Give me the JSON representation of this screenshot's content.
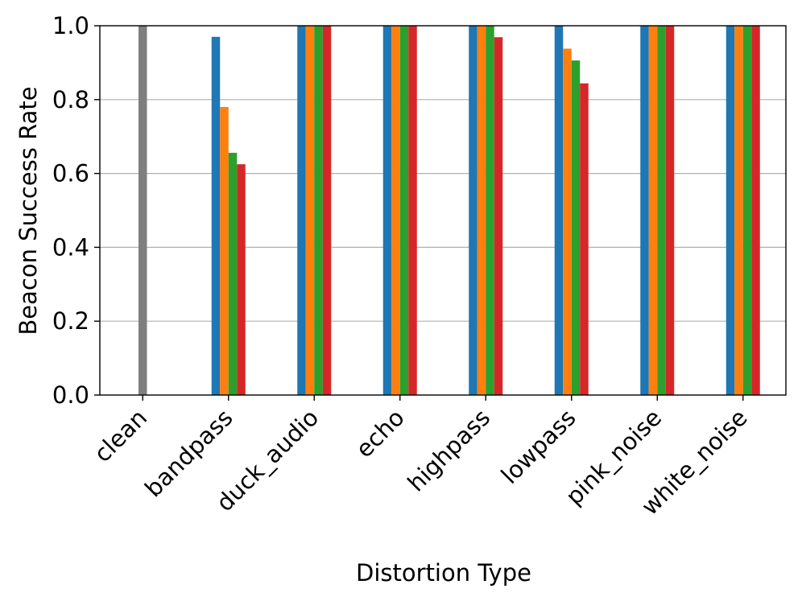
{
  "chart_data": {
    "type": "bar",
    "xlabel": "Distortion Type",
    "ylabel": "Beacon Success Rate",
    "ylim": [
      0,
      1.0
    ],
    "yticks": [
      "0.0",
      "0.2",
      "0.4",
      "0.6",
      "0.8",
      "1.0"
    ],
    "grid": "horizontal",
    "legend": "none",
    "categories": [
      "clean",
      "bandpass",
      "duck_audio",
      "echo",
      "highpass",
      "lowpass",
      "pink_noise",
      "white_noise"
    ],
    "baseline": {
      "category": "clean",
      "value": 1.0,
      "color": "#7f7f7f"
    },
    "series": [
      {
        "color": "#1f77b4",
        "values": [
          null,
          0.97,
          1.0,
          1.0,
          1.0,
          1.0,
          1.0,
          1.0
        ]
      },
      {
        "color": "#ff7f0e",
        "values": [
          null,
          0.78,
          1.0,
          1.0,
          1.0,
          0.938,
          1.0,
          1.0
        ]
      },
      {
        "color": "#2ca02c",
        "values": [
          null,
          0.656,
          1.0,
          1.0,
          1.0,
          0.906,
          1.0,
          1.0
        ]
      },
      {
        "color": "#d62728",
        "values": [
          null,
          0.625,
          1.0,
          1.0,
          0.969,
          0.844,
          1.0,
          1.0
        ]
      }
    ]
  }
}
